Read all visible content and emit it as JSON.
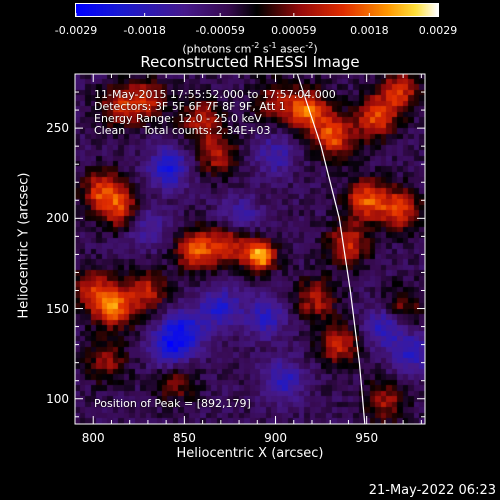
{
  "colorbar": {
    "tick_labels": [
      "-0.0029",
      "-0.0018",
      "-0.00059",
      "0.00059",
      "0.0018",
      "0.0029"
    ],
    "units_main": "(photons cm",
    "units_exp1": "-2",
    "units_mid1": " s",
    "units_exp2": "-1",
    "units_mid2": " asec",
    "units_exp3": "-2",
    "units_end": ")",
    "range": [
      -0.0029,
      0.0029
    ]
  },
  "chart_data": {
    "type": "heatmap",
    "title": "Reconstructed RHESSI Image",
    "xlabel": "Heliocentric X (arcsec)",
    "ylabel": "Heliocentric Y (arcsec)",
    "xlim": [
      790,
      982
    ],
    "ylim": [
      86,
      280
    ],
    "x_ticks": [
      800,
      850,
      900,
      950
    ],
    "y_ticks": [
      100,
      150,
      200,
      250
    ],
    "x_tick_labels": [
      "800",
      "850",
      "900",
      "950"
    ],
    "y_tick_labels": [
      "100",
      "150",
      "200",
      "250"
    ],
    "peak": [
      892,
      179
    ],
    "limb_points": [
      [
        912,
        280
      ],
      [
        925,
        240
      ],
      [
        935,
        200
      ],
      [
        941,
        160
      ],
      [
        946,
        120
      ],
      [
        949,
        86
      ]
    ],
    "hot_spots": [
      {
        "x": 892,
        "y": 179,
        "level": 1.0
      },
      {
        "x": 857,
        "y": 182,
        "level": 0.7
      },
      {
        "x": 875,
        "y": 186,
        "level": 0.6
      },
      {
        "x": 918,
        "y": 260,
        "level": 0.75
      },
      {
        "x": 932,
        "y": 245,
        "level": 0.7
      },
      {
        "x": 955,
        "y": 255,
        "level": 0.65
      },
      {
        "x": 968,
        "y": 270,
        "level": 0.6
      },
      {
        "x": 950,
        "y": 210,
        "level": 0.7
      },
      {
        "x": 968,
        "y": 205,
        "level": 0.65
      },
      {
        "x": 940,
        "y": 185,
        "level": 0.6
      },
      {
        "x": 805,
        "y": 215,
        "level": 0.6
      },
      {
        "x": 815,
        "y": 205,
        "level": 0.55
      },
      {
        "x": 812,
        "y": 150,
        "level": 0.75
      },
      {
        "x": 800,
        "y": 160,
        "level": 0.5
      },
      {
        "x": 830,
        "y": 160,
        "level": 0.5
      },
      {
        "x": 860,
        "y": 255,
        "level": 0.55
      },
      {
        "x": 868,
        "y": 235,
        "level": 0.5
      },
      {
        "x": 815,
        "y": 262,
        "level": 0.55
      },
      {
        "x": 830,
        "y": 265,
        "level": 0.5
      },
      {
        "x": 935,
        "y": 130,
        "level": 0.55
      },
      {
        "x": 922,
        "y": 155,
        "level": 0.5
      },
      {
        "x": 960,
        "y": 98,
        "level": 0.45
      },
      {
        "x": 900,
        "y": 265,
        "level": 0.45
      },
      {
        "x": 808,
        "y": 120,
        "level": 0.4
      },
      {
        "x": 845,
        "y": 108,
        "level": 0.35
      },
      {
        "x": 970,
        "y": 150,
        "level": 0.4
      }
    ],
    "cold_spots": [
      {
        "x": 842,
        "y": 228,
        "level": -0.6
      },
      {
        "x": 850,
        "y": 138,
        "level": -0.55
      },
      {
        "x": 870,
        "y": 150,
        "level": -0.5
      },
      {
        "x": 842,
        "y": 128,
        "level": -0.55
      },
      {
        "x": 895,
        "y": 145,
        "level": -0.45
      },
      {
        "x": 880,
        "y": 200,
        "level": -0.4
      },
      {
        "x": 905,
        "y": 110,
        "level": -0.45
      },
      {
        "x": 960,
        "y": 140,
        "level": -0.5
      },
      {
        "x": 975,
        "y": 125,
        "level": -0.45
      },
      {
        "x": 900,
        "y": 235,
        "level": -0.35
      },
      {
        "x": 830,
        "y": 195,
        "level": -0.35
      }
    ]
  },
  "info": {
    "line1": "11-May-2015 17:55:52.000 to 17:57:04.000",
    "line2": "Detectors: 3F 5F 6F 7F 8F 9F, Att 1",
    "line3": "Energy Range: 12.0 - 25.0 keV",
    "line4": "Clean     Total counts: 2.34E+03",
    "peak_text": "Position of Peak = [892,179]"
  },
  "footer": "21-May-2022 06:23"
}
